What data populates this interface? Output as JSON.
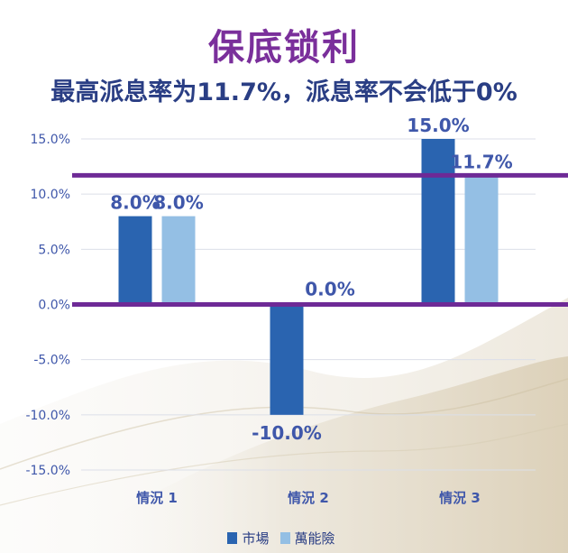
{
  "header": {
    "title": "保底锁利",
    "subtitle": "最高派息率为11.7%，派息率不会低于0%"
  },
  "colors": {
    "title": "#7a2f9b",
    "series_market": "#2a64b0",
    "series_ul": "#94bfe4",
    "reference_line": "#6e2a96",
    "axis_text": "#3f57aa",
    "label_text": "#3f57aa",
    "grid": "#dcdfe8"
  },
  "chart_data": {
    "type": "bar",
    "categories": [
      "情況 1",
      "情況 2",
      "情況 3"
    ],
    "series": [
      {
        "name": "市場",
        "values": [
          8.0,
          -10.0,
          15.0
        ],
        "labels": [
          "8.0%",
          "-10.0%",
          "15.0%"
        ]
      },
      {
        "name": "萬能險",
        "values": [
          8.0,
          0.0,
          11.7
        ],
        "labels": [
          "8.0%",
          "0.0%",
          "11.7%"
        ]
      }
    ],
    "ylim": [
      -15,
      15
    ],
    "yticks": [
      15,
      10,
      5,
      0,
      -5,
      -10,
      -15
    ],
    "ytick_labels": [
      "15.0%",
      "10.0%",
      "5.0%",
      "0.0%",
      "-5.0%",
      "-10.0%",
      "-15.0%"
    ],
    "reference_lines": [
      11.7,
      0
    ],
    "grid": true,
    "legend_position": "bottom-center"
  }
}
